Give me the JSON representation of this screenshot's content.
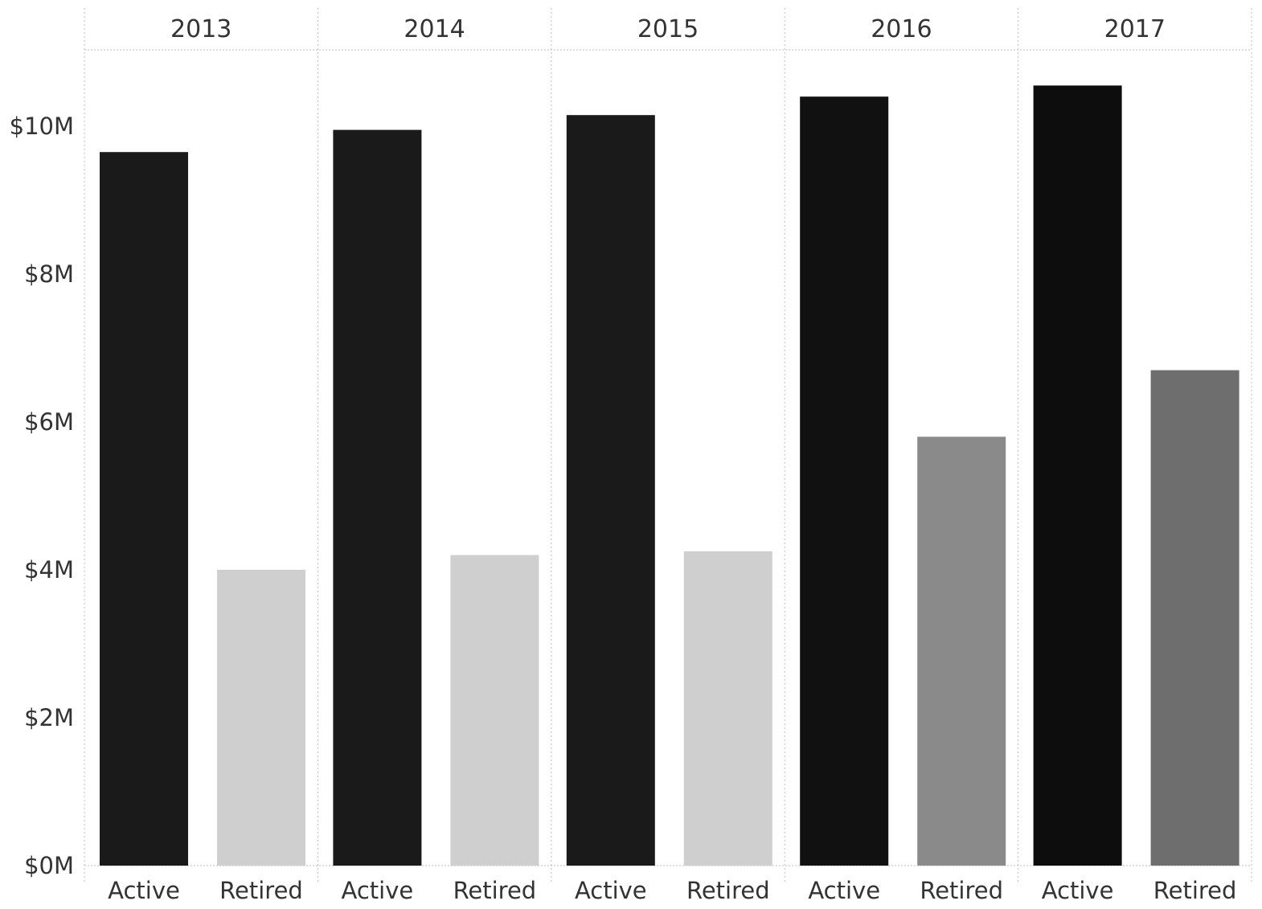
{
  "chart_data": {
    "type": "bar",
    "title": "",
    "xlabel": "",
    "ylabel": "",
    "ylim": [
      0,
      11.25
    ],
    "y_ticks": [
      "$0M",
      "$2M",
      "$4M",
      "$6M",
      "$8M",
      "$10M"
    ],
    "y_tick_values": [
      0,
      2,
      4,
      6,
      8,
      10
    ],
    "groups": [
      {
        "year": "2013",
        "bars": [
          {
            "category": "Active",
            "value": 9.65,
            "color": "#1a1a1a"
          },
          {
            "category": "Retired",
            "value": 4.0,
            "color": "#cfcfcf"
          }
        ]
      },
      {
        "year": "2014",
        "bars": [
          {
            "category": "Active",
            "value": 9.95,
            "color": "#1a1a1a"
          },
          {
            "category": "Retired",
            "value": 4.2,
            "color": "#cfcfcf"
          }
        ]
      },
      {
        "year": "2015",
        "bars": [
          {
            "category": "Active",
            "value": 10.15,
            "color": "#1a1a1a"
          },
          {
            "category": "Retired",
            "value": 4.25,
            "color": "#cfcfcf"
          }
        ]
      },
      {
        "year": "2016",
        "bars": [
          {
            "category": "Active",
            "value": 10.4,
            "color": "#111111"
          },
          {
            "category": "Retired",
            "value": 5.8,
            "color": "#8a8a8a"
          }
        ]
      },
      {
        "year": "2017",
        "bars": [
          {
            "category": "Active",
            "value": 10.55,
            "color": "#0d0d0d"
          },
          {
            "category": "Retired",
            "value": 6.7,
            "color": "#6e6e6e"
          }
        ]
      }
    ]
  }
}
